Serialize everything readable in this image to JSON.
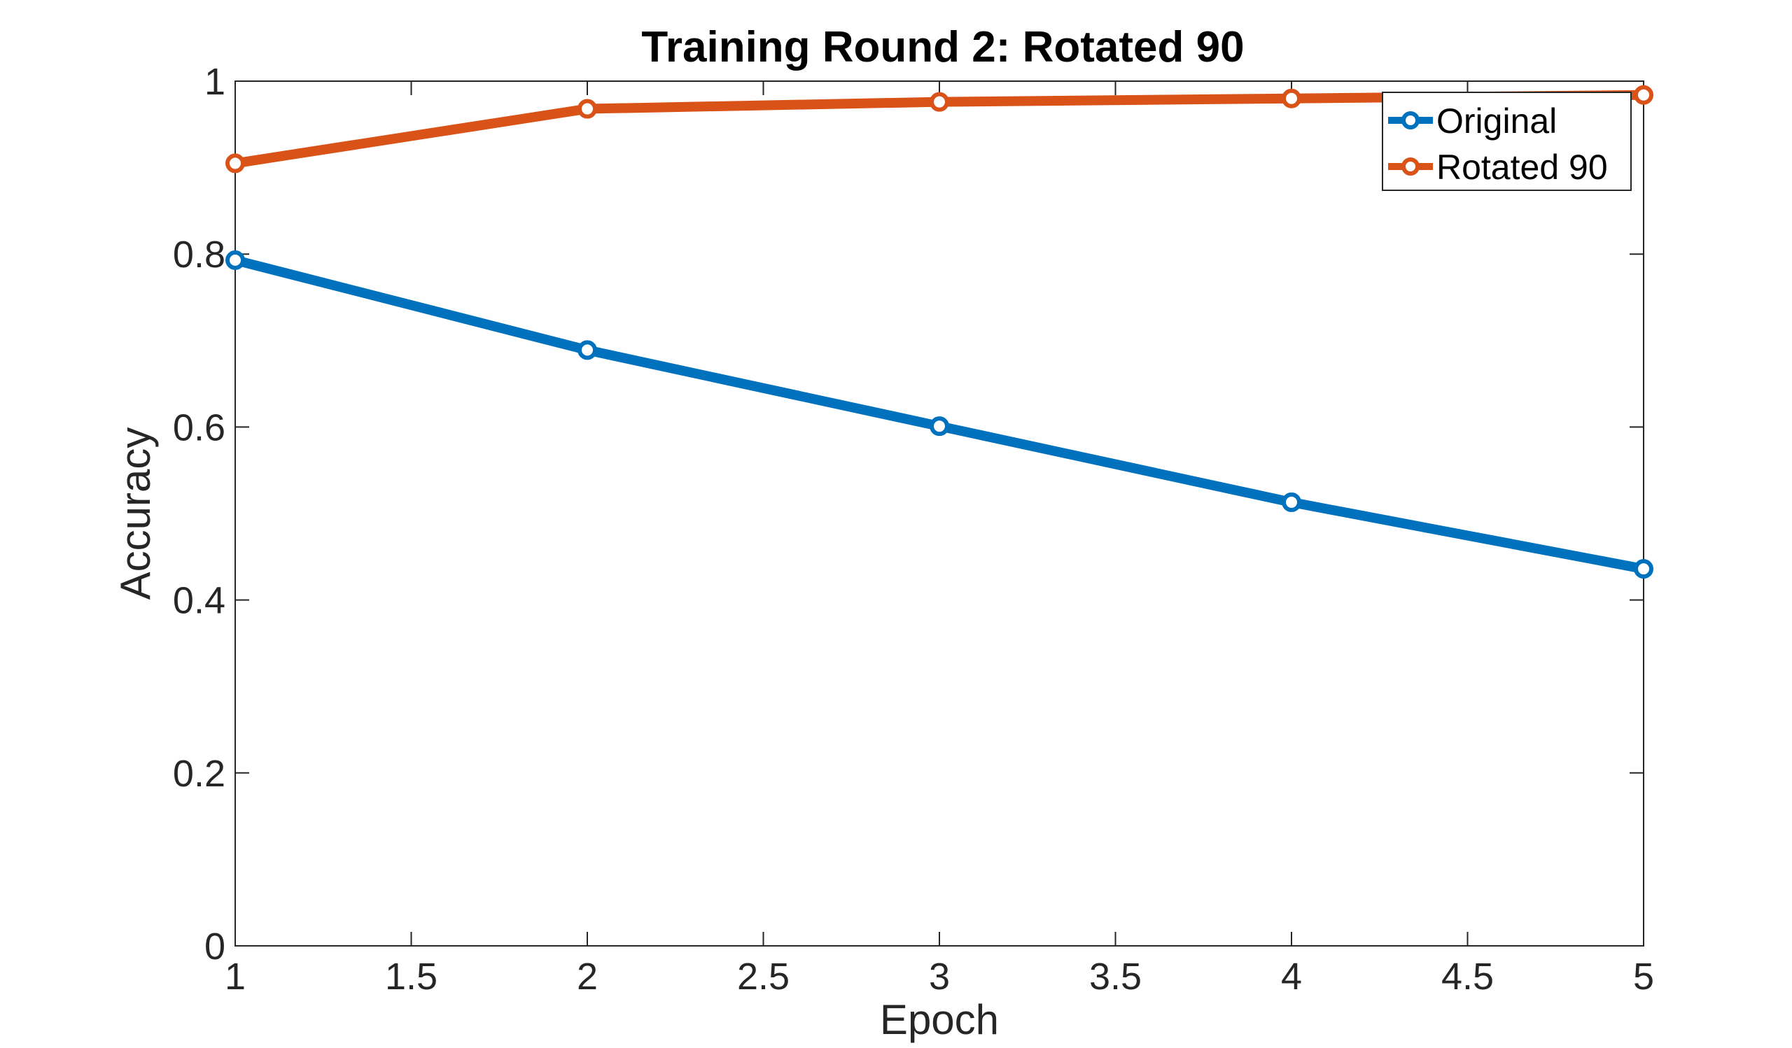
{
  "chart_data": {
    "type": "line",
    "title": "Training Round 2: Rotated 90",
    "xlabel": "Epoch",
    "ylabel": "Accuracy",
    "xlim": [
      1,
      5
    ],
    "ylim": [
      0,
      1
    ],
    "xticks": [
      "1",
      "1.5",
      "2",
      "2.5",
      "3",
      "3.5",
      "4",
      "4.5",
      "5"
    ],
    "yticks": [
      "0",
      "0.2",
      "0.4",
      "0.6",
      "0.8",
      "1"
    ],
    "grid": false,
    "legend_position": "top-right",
    "x": [
      1,
      2,
      3,
      4,
      5
    ],
    "series": [
      {
        "name": "Original",
        "color": "#0072BD",
        "values": [
          0.793,
          0.689,
          0.601,
          0.513,
          0.436
        ]
      },
      {
        "name": "Rotated 90",
        "color": "#D95319",
        "values": [
          0.905,
          0.968,
          0.976,
          0.98,
          0.984
        ]
      }
    ]
  }
}
